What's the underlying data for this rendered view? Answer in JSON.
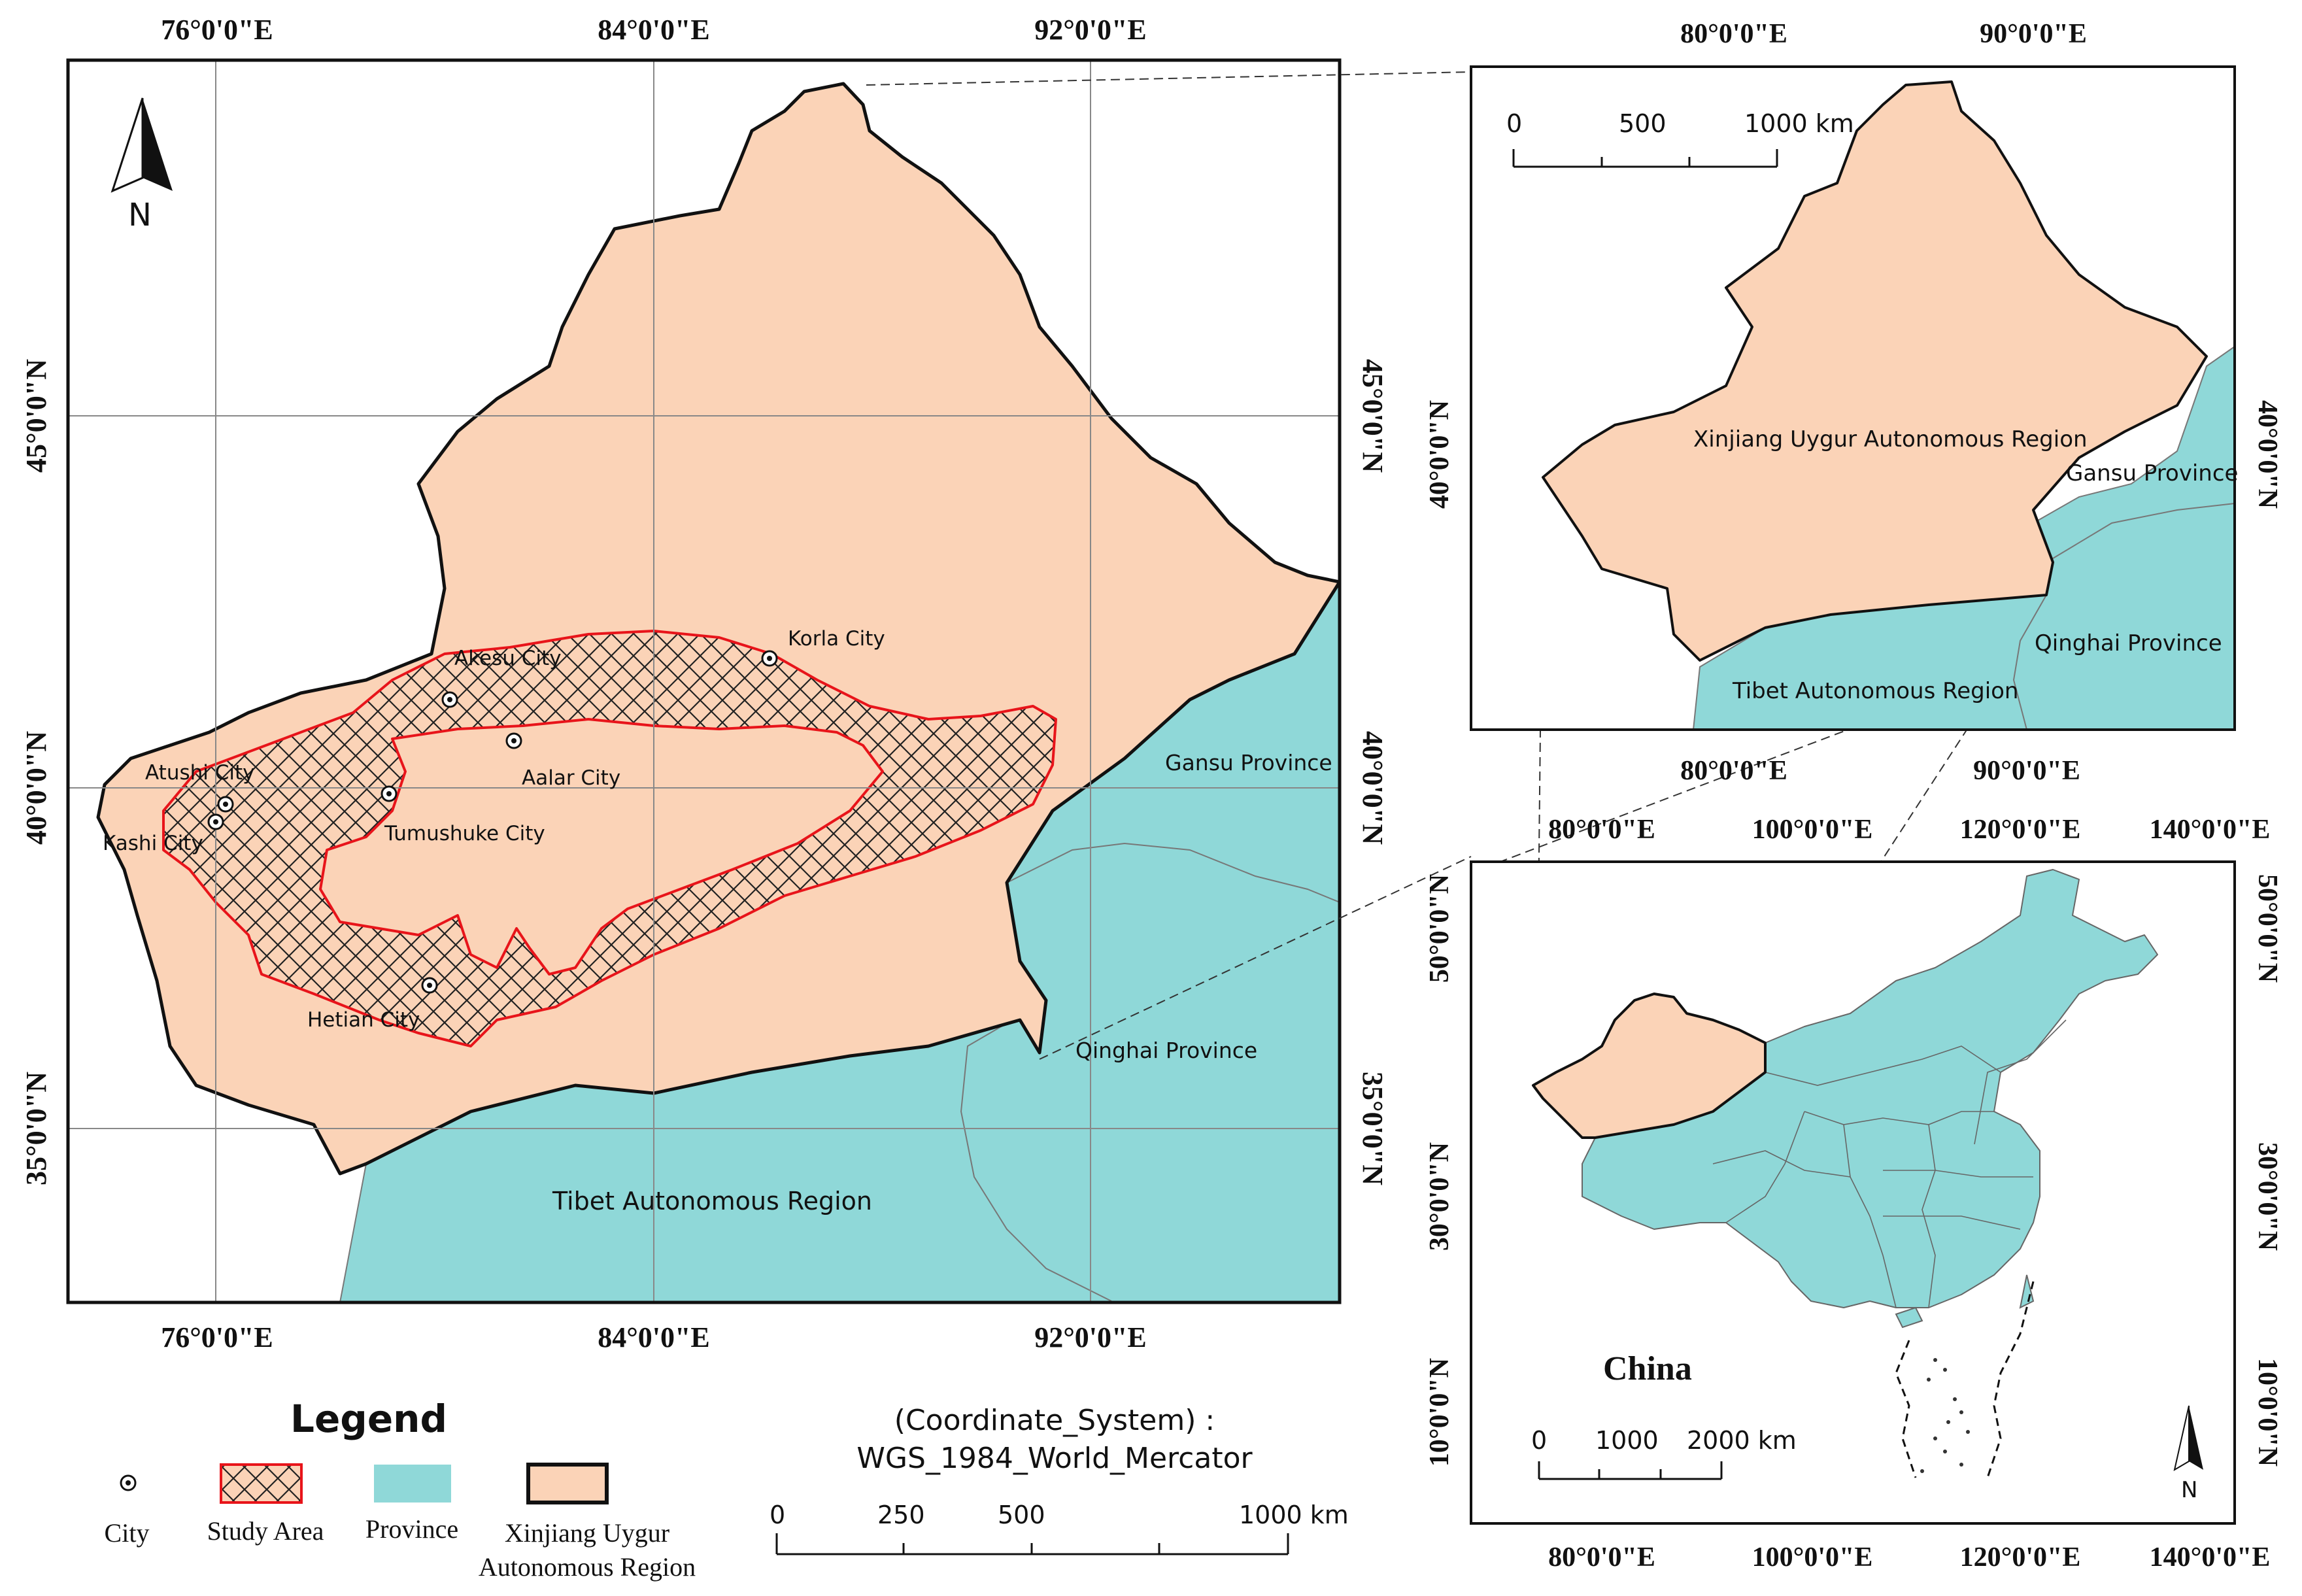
{
  "main_map": {
    "top_lon_labels": [
      "76°0'0\"E",
      "84°0'0\"E",
      "92°0'0\"E"
    ],
    "bottom_lon_labels": [
      "76°0'0\"E",
      "84°0'0\"E",
      "92°0'0\"E"
    ],
    "left_lat_labels": [
      "45°0'0\"N",
      "40°0'0\"N",
      "35°0'0\"N"
    ],
    "right_lat_labels": [
      "45°0'0\"N",
      "40°0'0\"N",
      "35°0'0\"N"
    ],
    "north": "N",
    "cities": [
      "Korla City",
      "Akesu City",
      "Atushi City",
      "Aalar City",
      "Kashi City",
      "Tumushuke City",
      "Hetian City"
    ],
    "regions": {
      "gansu": "Gansu Province",
      "qinghai": "Qinghai Province",
      "tibet": "Tibet Autonomous Region"
    },
    "colors": {
      "xinjiang": "#fbd3b7",
      "province": "#8fd8d8",
      "study_border": "#e8141a"
    }
  },
  "inset_top": {
    "top_lon_labels": [
      "80°0'0\"E",
      "90°0'0\"E"
    ],
    "bottom_lon_labels": [
      "80°0'0\"E",
      "90°0'0\"E"
    ],
    "left_lat_label": "40°0'0\"N",
    "right_lat_label": "40°0'0\"N",
    "scale_ticks": [
      "0",
      "500",
      "1000 km"
    ],
    "labels": {
      "xinjiang": "Xinjiang Uygur Autonomous Region",
      "gansu": "Gansu Province",
      "qinghai": "Qinghai Province",
      "tibet": "Tibet Autonomous Region"
    }
  },
  "inset_bottom": {
    "top_lon_labels": [
      "80°0'0\"E",
      "100°0'0\"E",
      "120°0'0\"E",
      "140°0'0\"E"
    ],
    "bottom_lon_labels": [
      "80°0'0\"E",
      "100°0'0\"E",
      "120°0'0\"E",
      "140°0'0\"E"
    ],
    "left_lat_labels": [
      "50°0'0\"N",
      "30°0'0\"N",
      "10°0'0\"N"
    ],
    "right_lat_labels": [
      "50°0'0\"N",
      "30°0'0\"N",
      "10°0'0\"N"
    ],
    "country": "China",
    "scale_ticks": [
      "0",
      "1000",
      "2000 km"
    ],
    "north": "N"
  },
  "legend": {
    "title": "Legend",
    "items": [
      "City",
      "Study Area",
      "Province",
      "Xinjiang Uygur",
      "Autonomous Region"
    ]
  },
  "coordinate_system": {
    "line1": "(Coordinate_System) :",
    "line2": "WGS_1984_World_Mercator"
  },
  "main_scale": {
    "ticks": [
      "0",
      "250",
      "500",
      "1000 km"
    ]
  }
}
